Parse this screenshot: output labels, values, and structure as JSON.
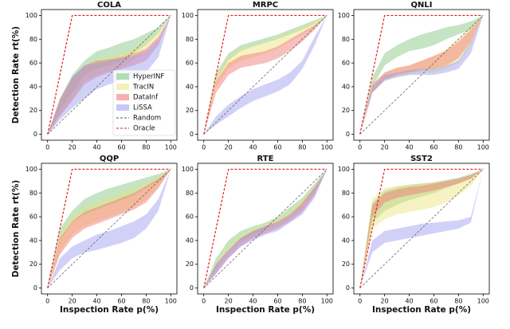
{
  "chart_data": [
    {
      "type": "area",
      "title": "COLA",
      "ylabel": "Detection Rate rt(%)",
      "legend": "lower right",
      "xlim": [
        -5,
        105
      ],
      "ylim": [
        -5,
        105
      ],
      "xticks": [
        0,
        20,
        40,
        60,
        80,
        100
      ],
      "yticks": [
        0,
        20,
        40,
        60,
        80,
        100
      ],
      "x": [
        0,
        10,
        20,
        30,
        40,
        50,
        60,
        70,
        80,
        90,
        100
      ],
      "series": [
        {
          "name": "HyperINF",
          "color": "#7cc47c",
          "lower": [
            0,
            20,
            35,
            50,
            55,
            58,
            62,
            68,
            75,
            85,
            100
          ],
          "upper": [
            0,
            30,
            50,
            62,
            70,
            73,
            77,
            80,
            85,
            90,
            100
          ]
        },
        {
          "name": "TracIN",
          "color": "#ece37a",
          "lower": [
            0,
            15,
            30,
            45,
            50,
            53,
            56,
            62,
            70,
            80,
            100
          ],
          "upper": [
            0,
            28,
            45,
            58,
            62,
            65,
            68,
            72,
            78,
            87,
            100
          ]
        },
        {
          "name": "DataInf",
          "color": "#f07070",
          "lower": [
            0,
            15,
            28,
            42,
            48,
            52,
            55,
            58,
            62,
            75,
            100
          ],
          "upper": [
            0,
            30,
            48,
            58,
            62,
            63,
            65,
            68,
            72,
            82,
            100
          ]
        },
        {
          "name": "LiSSA",
          "color": "#9a9af0",
          "lower": [
            0,
            12,
            22,
            30,
            38,
            42,
            45,
            48,
            52,
            65,
            100
          ],
          "upper": [
            0,
            28,
            48,
            58,
            60,
            62,
            64,
            66,
            70,
            80,
            100
          ]
        },
        {
          "name": "Random",
          "color": "#555555",
          "dash": true,
          "values": [
            0,
            10,
            20,
            30,
            40,
            50,
            60,
            70,
            80,
            90,
            100
          ]
        },
        {
          "name": "Oracle",
          "color": "#e41a1a",
          "dash": true,
          "values": [
            0,
            50,
            100,
            100,
            100,
            100,
            100,
            100,
            100,
            100,
            100
          ]
        }
      ]
    },
    {
      "type": "area",
      "title": "MRPC",
      "xlim": [
        -5,
        105
      ],
      "ylim": [
        -5,
        105
      ],
      "xticks": [
        0,
        20,
        40,
        60,
        80,
        100
      ],
      "yticks": [
        0,
        20,
        40,
        60,
        80,
        100
      ],
      "x": [
        0,
        10,
        20,
        30,
        40,
        50,
        60,
        70,
        80,
        90,
        100
      ],
      "series": [
        {
          "name": "HyperINF",
          "color": "#7cc47c",
          "lower": [
            0,
            45,
            62,
            70,
            74,
            77,
            80,
            84,
            88,
            93,
            100
          ],
          "upper": [
            0,
            52,
            68,
            75,
            78,
            81,
            84,
            88,
            92,
            96,
            100
          ]
        },
        {
          "name": "TracIN",
          "color": "#ece37a",
          "lower": [
            0,
            40,
            55,
            62,
            65,
            68,
            72,
            78,
            84,
            90,
            100
          ],
          "upper": [
            0,
            50,
            65,
            72,
            75,
            78,
            82,
            86,
            90,
            95,
            100
          ]
        },
        {
          "name": "DataInf",
          "color": "#f07070",
          "lower": [
            0,
            35,
            50,
            56,
            58,
            60,
            64,
            70,
            78,
            88,
            100
          ],
          "upper": [
            0,
            45,
            60,
            66,
            68,
            70,
            74,
            80,
            86,
            92,
            100
          ]
        },
        {
          "name": "LiSSA",
          "color": "#9a9af0",
          "lower": [
            0,
            8,
            15,
            22,
            28,
            32,
            36,
            42,
            55,
            75,
            100
          ],
          "upper": [
            0,
            15,
            25,
            32,
            38,
            42,
            46,
            52,
            62,
            82,
            100
          ]
        },
        {
          "name": "Random",
          "color": "#555555",
          "dash": true,
          "values": [
            0,
            10,
            20,
            30,
            40,
            50,
            60,
            70,
            80,
            90,
            100
          ]
        },
        {
          "name": "Oracle",
          "color": "#e41a1a",
          "dash": true,
          "values": [
            0,
            50,
            100,
            100,
            100,
            100,
            100,
            100,
            100,
            100,
            100
          ]
        }
      ]
    },
    {
      "type": "area",
      "title": "QNLI",
      "xlim": [
        -5,
        105
      ],
      "ylim": [
        -5,
        105
      ],
      "xticks": [
        0,
        20,
        40,
        60,
        80,
        100
      ],
      "yticks": [
        0,
        20,
        40,
        60,
        80,
        100
      ],
      "x": [
        0,
        10,
        20,
        30,
        40,
        50,
        60,
        70,
        80,
        90,
        100
      ],
      "series": [
        {
          "name": "HyperINF",
          "color": "#7cc47c",
          "lower": [
            0,
            40,
            58,
            65,
            70,
            72,
            75,
            80,
            84,
            88,
            100
          ],
          "upper": [
            0,
            48,
            68,
            75,
            80,
            84,
            87,
            90,
            92,
            95,
            100
          ]
        },
        {
          "name": "TracIN",
          "color": "#ece37a",
          "lower": [
            0,
            35,
            45,
            48,
            50,
            52,
            52,
            55,
            60,
            75,
            100
          ],
          "upper": [
            0,
            42,
            52,
            56,
            58,
            62,
            66,
            72,
            80,
            90,
            100
          ]
        },
        {
          "name": "DataInf",
          "color": "#f07070",
          "lower": [
            0,
            35,
            46,
            50,
            52,
            54,
            55,
            58,
            64,
            78,
            100
          ],
          "upper": [
            0,
            42,
            52,
            56,
            58,
            62,
            66,
            70,
            78,
            88,
            100
          ]
        },
        {
          "name": "LiSSA",
          "color": "#9a9af0",
          "lower": [
            0,
            35,
            45,
            48,
            50,
            50,
            50,
            52,
            55,
            68,
            100
          ],
          "upper": [
            0,
            40,
            50,
            52,
            54,
            55,
            55,
            58,
            62,
            78,
            100
          ]
        },
        {
          "name": "Random",
          "color": "#555555",
          "dash": true,
          "values": [
            0,
            10,
            20,
            30,
            40,
            50,
            60,
            70,
            80,
            90,
            100
          ]
        },
        {
          "name": "Oracle",
          "color": "#e41a1a",
          "dash": true,
          "values": [
            0,
            50,
            100,
            100,
            100,
            100,
            100,
            100,
            100,
            100,
            100
          ]
        }
      ]
    },
    {
      "type": "area",
      "title": "QQP",
      "ylabel": "Detection Rate rt(%)",
      "xlabel": "Inspection Rate p(%)",
      "xlim": [
        -5,
        105
      ],
      "ylim": [
        -5,
        105
      ],
      "xticks": [
        0,
        20,
        40,
        60,
        80,
        100
      ],
      "yticks": [
        0,
        20,
        40,
        60,
        80,
        100
      ],
      "x": [
        0,
        10,
        20,
        30,
        40,
        50,
        60,
        70,
        80,
        90,
        100
      ],
      "series": [
        {
          "name": "HyperINF",
          "color": "#7cc47c",
          "lower": [
            0,
            40,
            55,
            62,
            66,
            70,
            74,
            78,
            84,
            90,
            100
          ],
          "upper": [
            0,
            50,
            65,
            75,
            80,
            84,
            87,
            90,
            93,
            96,
            100
          ]
        },
        {
          "name": "TracIN",
          "color": "#ece37a",
          "lower": [
            0,
            30,
            45,
            52,
            56,
            60,
            64,
            68,
            74,
            85,
            100
          ],
          "upper": [
            0,
            45,
            60,
            68,
            72,
            76,
            80,
            84,
            88,
            94,
            100
          ]
        },
        {
          "name": "DataInf",
          "color": "#f07070",
          "lower": [
            0,
            28,
            42,
            50,
            54,
            58,
            62,
            66,
            72,
            84,
            100
          ],
          "upper": [
            0,
            42,
            56,
            64,
            68,
            72,
            76,
            80,
            86,
            92,
            100
          ]
        },
        {
          "name": "LiSSA",
          "color": "#9a9af0",
          "lower": [
            0,
            15,
            25,
            30,
            32,
            35,
            38,
            42,
            50,
            65,
            100
          ],
          "upper": [
            0,
            25,
            35,
            40,
            45,
            48,
            52,
            56,
            62,
            75,
            100
          ]
        },
        {
          "name": "Random",
          "color": "#555555",
          "dash": true,
          "values": [
            0,
            10,
            20,
            30,
            40,
            50,
            60,
            70,
            80,
            90,
            100
          ]
        },
        {
          "name": "Oracle",
          "color": "#e41a1a",
          "dash": true,
          "values": [
            0,
            50,
            100,
            100,
            100,
            100,
            100,
            100,
            100,
            100,
            100
          ]
        }
      ]
    },
    {
      "type": "area",
      "title": "RTE",
      "xlabel": "Inspection Rate p(%)",
      "xlim": [
        -5,
        105
      ],
      "ylim": [
        -5,
        105
      ],
      "xticks": [
        0,
        20,
        40,
        60,
        80,
        100
      ],
      "yticks": [
        0,
        20,
        40,
        60,
        80,
        100
      ],
      "x": [
        0,
        10,
        20,
        30,
        40,
        50,
        60,
        70,
        80,
        90,
        100
      ],
      "series": [
        {
          "name": "HyperINF",
          "color": "#7cc47c",
          "lower": [
            0,
            18,
            32,
            40,
            45,
            50,
            55,
            62,
            70,
            82,
            100
          ],
          "upper": [
            0,
            25,
            40,
            48,
            52,
            55,
            60,
            68,
            76,
            88,
            100
          ]
        },
        {
          "name": "TracIN",
          "color": "#ece37a",
          "lower": [
            0,
            15,
            28,
            38,
            42,
            48,
            52,
            58,
            66,
            80,
            100
          ],
          "upper": [
            0,
            22,
            36,
            45,
            50,
            54,
            58,
            65,
            74,
            86,
            100
          ]
        },
        {
          "name": "DataInf",
          "color": "#f07070",
          "lower": [
            0,
            12,
            25,
            35,
            42,
            46,
            50,
            56,
            64,
            78,
            100
          ],
          "upper": [
            0,
            20,
            32,
            42,
            48,
            52,
            56,
            62,
            72,
            85,
            100
          ]
        },
        {
          "name": "LiSSA",
          "color": "#9a9af0",
          "lower": [
            0,
            12,
            25,
            35,
            40,
            45,
            48,
            55,
            62,
            76,
            100
          ],
          "upper": [
            0,
            20,
            32,
            42,
            48,
            52,
            55,
            62,
            70,
            84,
            100
          ]
        },
        {
          "name": "Random",
          "color": "#555555",
          "dash": true,
          "values": [
            0,
            10,
            20,
            30,
            40,
            50,
            60,
            70,
            80,
            90,
            100
          ]
        },
        {
          "name": "Oracle",
          "color": "#e41a1a",
          "dash": true,
          "values": [
            0,
            50,
            100,
            100,
            100,
            100,
            100,
            100,
            100,
            100,
            100
          ]
        }
      ]
    },
    {
      "type": "area",
      "title": "SST2",
      "xlabel": "Inspection Rate p(%)",
      "xlim": [
        -5,
        105
      ],
      "ylim": [
        -5,
        105
      ],
      "xticks": [
        0,
        20,
        40,
        60,
        80,
        100
      ],
      "yticks": [
        0,
        20,
        40,
        60,
        80,
        100
      ],
      "x": [
        0,
        10,
        20,
        30,
        40,
        50,
        60,
        70,
        80,
        90,
        100
      ],
      "series": [
        {
          "name": "HyperINF",
          "color": "#7cc47c",
          "lower": [
            0,
            55,
            65,
            70,
            74,
            77,
            80,
            84,
            88,
            92,
            100
          ],
          "upper": [
            0,
            72,
            82,
            85,
            87,
            88,
            89,
            91,
            93,
            96,
            100
          ]
        },
        {
          "name": "TracIN",
          "color": "#ece37a",
          "lower": [
            0,
            50,
            58,
            62,
            64,
            66,
            68,
            72,
            78,
            86,
            100
          ],
          "upper": [
            0,
            75,
            84,
            86,
            87,
            88,
            89,
            90,
            92,
            95,
            100
          ]
        },
        {
          "name": "DataInf",
          "color": "#f07070",
          "lower": [
            0,
            60,
            72,
            76,
            78,
            80,
            82,
            85,
            88,
            92,
            100
          ],
          "upper": [
            0,
            70,
            80,
            83,
            85,
            86,
            88,
            90,
            92,
            95,
            100
          ]
        },
        {
          "name": "LiSSA",
          "color": "#9a9af0",
          "lower": [
            0,
            30,
            38,
            40,
            42,
            44,
            46,
            48,
            50,
            55,
            100
          ],
          "upper": [
            0,
            40,
            48,
            50,
            52,
            54,
            55,
            56,
            57,
            60,
            100
          ]
        },
        {
          "name": "Random",
          "color": "#555555",
          "dash": true,
          "values": [
            0,
            10,
            20,
            30,
            40,
            50,
            60,
            70,
            80,
            90,
            100
          ]
        },
        {
          "name": "Oracle",
          "color": "#e41a1a",
          "dash": true,
          "values": [
            0,
            50,
            100,
            100,
            100,
            100,
            100,
            100,
            100,
            100,
            100
          ]
        }
      ]
    }
  ]
}
